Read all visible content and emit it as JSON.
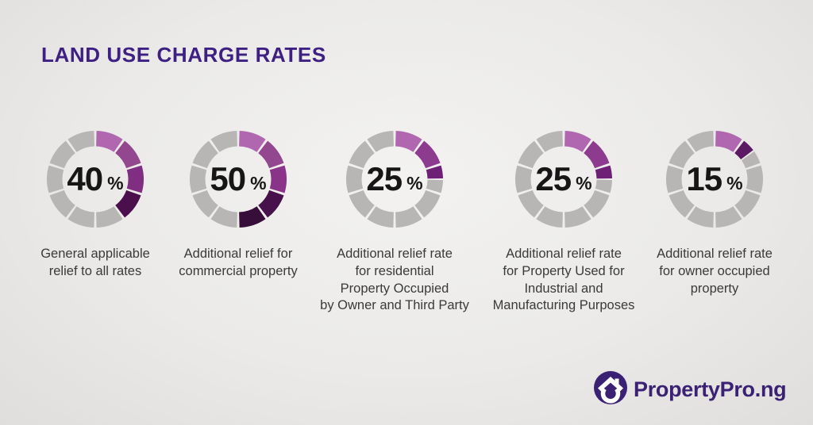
{
  "title": "LAND USE CHARGE RATES",
  "theme": {
    "background_center": "#f3f2f1",
    "background_edge": "#e0dedc",
    "title_color": "#3e2083",
    "gray_segment_color": "#b8b6b5",
    "percent_text_color": "#161616",
    "caption_text_color": "#3a3a3a",
    "logo_purple": "#3b2173"
  },
  "donut": {
    "segments_total": 10,
    "gap_degrees": 3,
    "percent_suffix": "%"
  },
  "chart_data": [
    {
      "type": "donut",
      "value_percent": 40,
      "value_label": "40",
      "filled_segments": 4,
      "segment_colors": [
        "#b067af",
        "#92478f",
        "#7f2e81",
        "#4c0f4e"
      ],
      "caption_lines": [
        "General applicable",
        "relief to all rates"
      ]
    },
    {
      "type": "donut",
      "value_percent": 50,
      "value_label": "50",
      "filled_segments": 5,
      "segment_colors": [
        "#b067af",
        "#92478f",
        "#8a3489",
        "#47124b",
        "#370e39"
      ],
      "caption_lines": [
        "Additional relief for",
        "commercial property"
      ]
    },
    {
      "type": "donut",
      "value_percent": 25,
      "value_label": "25",
      "filled_segments": 2.5,
      "segment_colors": [
        "#b067af",
        "#8c3b8e",
        "#6e2076"
      ],
      "caption_lines": [
        "Additional relief rate",
        "for residential",
        "Property Occupied",
        "by Owner and Third Party"
      ]
    },
    {
      "type": "donut",
      "value_percent": 25,
      "value_label": "25",
      "filled_segments": 2.5,
      "segment_colors": [
        "#b067af",
        "#8c3b8e",
        "#6e2076"
      ],
      "caption_lines": [
        "Additional relief rate",
        "for Property Used for",
        "Industrial and",
        "Manufacturing Purposes"
      ]
    },
    {
      "type": "donut",
      "value_percent": 15,
      "value_label": "15",
      "filled_segments": 1.5,
      "segment_colors": [
        "#b067af",
        "#5c1a64"
      ],
      "caption_lines": [
        "Additional relief rate",
        "for owner occupied",
        "property"
      ]
    }
  ],
  "logo": {
    "text": "PropertyPro.ng",
    "icon": "house-icon"
  }
}
